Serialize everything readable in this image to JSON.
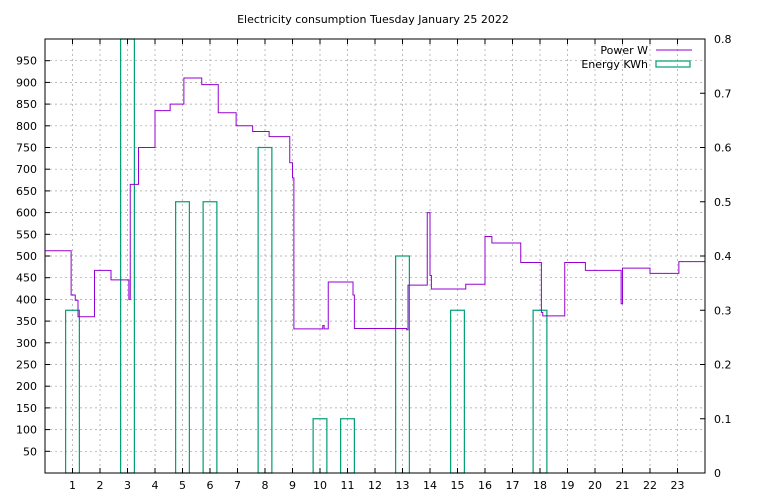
{
  "chart_data": {
    "type": "line",
    "title": "Electricity consumption Tuesday January 25 2022",
    "xlabel": "",
    "ylabel": "",
    "y2label": "",
    "xlim": [
      0,
      24
    ],
    "ylim": [
      0,
      1000
    ],
    "y2lim": [
      0,
      0.8
    ],
    "x_ticks": [
      1,
      2,
      3,
      4,
      5,
      6,
      7,
      8,
      9,
      10,
      11,
      12,
      13,
      14,
      15,
      16,
      17,
      18,
      19,
      20,
      21,
      22,
      23
    ],
    "y_ticks": [
      50,
      100,
      150,
      200,
      250,
      300,
      350,
      400,
      450,
      500,
      550,
      600,
      650,
      700,
      750,
      800,
      850,
      900,
      950
    ],
    "y2_ticks": [
      0,
      0.1,
      0.2,
      0.3,
      0.4,
      0.5,
      0.6,
      0.7,
      0.8
    ],
    "grid": true,
    "legend": "top-right",
    "colors": {
      "power": "#9400d3",
      "energy": "#009e73",
      "grid": "#a0a0a0",
      "axis": "#000000"
    },
    "series": [
      {
        "name": "Power W",
        "type": "step",
        "axis": "y",
        "points": [
          [
            0,
            512
          ],
          [
            0.95,
            512
          ],
          [
            0.95,
            410
          ],
          [
            1.1,
            410
          ],
          [
            1.1,
            398
          ],
          [
            1.2,
            398
          ],
          [
            1.2,
            360
          ],
          [
            1.8,
            360
          ],
          [
            1.8,
            467
          ],
          [
            2.4,
            467
          ],
          [
            2.4,
            445
          ],
          [
            3.05,
            445
          ],
          [
            3.05,
            400
          ],
          [
            3.1,
            400
          ],
          [
            3.1,
            665
          ],
          [
            3.4,
            665
          ],
          [
            3.4,
            750
          ],
          [
            4.0,
            750
          ],
          [
            4.0,
            835
          ],
          [
            4.55,
            835
          ],
          [
            4.55,
            850
          ],
          [
            5.05,
            850
          ],
          [
            5.05,
            910
          ],
          [
            5.7,
            910
          ],
          [
            5.7,
            895
          ],
          [
            6.3,
            895
          ],
          [
            6.3,
            830
          ],
          [
            6.95,
            830
          ],
          [
            6.95,
            800
          ],
          [
            7.55,
            800
          ],
          [
            7.55,
            787
          ],
          [
            8.15,
            787
          ],
          [
            8.15,
            775
          ],
          [
            8.9,
            775
          ],
          [
            8.9,
            715
          ],
          [
            9.0,
            715
          ],
          [
            9.0,
            680
          ],
          [
            9.05,
            680
          ],
          [
            9.05,
            332
          ],
          [
            10.1,
            332
          ],
          [
            10.1,
            340
          ],
          [
            10.15,
            340
          ],
          [
            10.15,
            332
          ],
          [
            10.3,
            332
          ],
          [
            10.3,
            440
          ],
          [
            11.2,
            440
          ],
          [
            11.2,
            410
          ],
          [
            11.25,
            410
          ],
          [
            11.25,
            333
          ],
          [
            13.15,
            333
          ],
          [
            13.15,
            330
          ],
          [
            13.2,
            330
          ],
          [
            13.2,
            433
          ],
          [
            13.9,
            433
          ],
          [
            13.9,
            600
          ],
          [
            14.0,
            600
          ],
          [
            14.0,
            455
          ],
          [
            14.05,
            455
          ],
          [
            14.05,
            424
          ],
          [
            15.3,
            424
          ],
          [
            15.3,
            435
          ],
          [
            16.0,
            435
          ],
          [
            16.0,
            545
          ],
          [
            16.25,
            545
          ],
          [
            16.25,
            530
          ],
          [
            17.3,
            530
          ],
          [
            17.3,
            485
          ],
          [
            18.05,
            485
          ],
          [
            18.05,
            370
          ],
          [
            18.1,
            370
          ],
          [
            18.1,
            362
          ],
          [
            18.9,
            362
          ],
          [
            18.9,
            485
          ],
          [
            19.65,
            485
          ],
          [
            19.65,
            467
          ],
          [
            20.95,
            467
          ],
          [
            20.95,
            390
          ],
          [
            21.0,
            390
          ],
          [
            21.0,
            472
          ],
          [
            22.0,
            472
          ],
          [
            22.0,
            460
          ],
          [
            23.05,
            460
          ],
          [
            23.05,
            487
          ],
          [
            24,
            487
          ]
        ]
      },
      {
        "name": "Energy KWh",
        "type": "bar",
        "axis": "y2",
        "bar_width": 0.5,
        "x": [
          1,
          3,
          5,
          6,
          8,
          10,
          11,
          13,
          15,
          18
        ],
        "values": [
          0.3,
          0.8,
          0.5,
          0.5,
          0.6,
          0.1,
          0.1,
          0.4,
          0.3,
          0.3
        ]
      }
    ]
  }
}
